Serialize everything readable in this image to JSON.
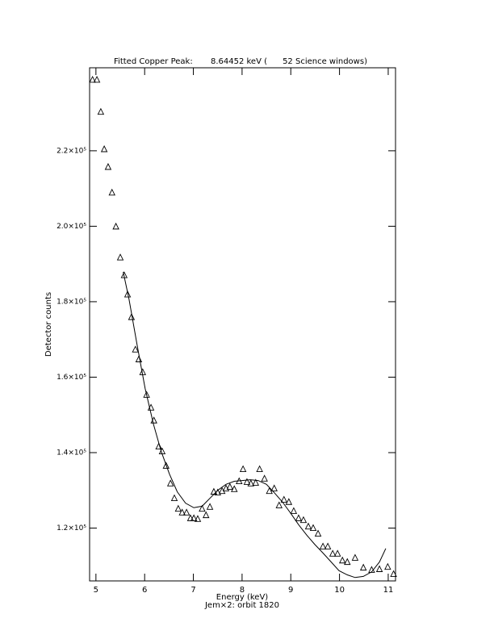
{
  "chart_data": {
    "type": "scatter",
    "title": "Fitted Copper Peak:       8.64452 keV (      52 Science windows)",
    "x_label": "Energy (keV)",
    "subtitle": "Jem×2: orbit 1820",
    "y_label": "Detector counts",
    "xlim": [
      4.87,
      11.15
    ],
    "ylim": [
      106000,
      242000
    ],
    "xticks": [
      5,
      6,
      7,
      8,
      9,
      10,
      11
    ],
    "yticks": [
      {
        "value": 120000,
        "label": "1.2×10⁵"
      },
      {
        "value": 140000,
        "label": "1.4×10⁵"
      },
      {
        "value": 160000,
        "label": "1.6×10⁵"
      },
      {
        "value": 180000,
        "label": "1.8×10⁵"
      },
      {
        "value": 200000,
        "label": "2.0×10⁵"
      },
      {
        "value": 220000,
        "label": "2.2×10⁵"
      }
    ],
    "color": "#000000",
    "points": {
      "x": [
        4.93,
        5.02,
        5.1,
        5.17,
        5.25,
        5.33,
        5.41,
        5.5,
        5.58,
        5.65,
        5.73,
        5.81,
        5.88,
        5.96,
        6.04,
        6.13,
        6.19,
        6.29,
        6.36,
        6.44,
        6.53,
        6.61,
        6.69,
        6.77,
        6.86,
        6.94,
        7.01,
        7.09,
        7.18,
        7.26,
        7.34,
        7.42,
        7.5,
        7.59,
        7.67,
        7.75,
        7.84,
        7.94,
        8.02,
        8.1,
        8.18,
        8.28,
        8.36,
        8.46,
        8.56,
        8.66,
        8.76,
        8.86,
        8.96,
        9.06,
        9.16,
        9.26,
        9.36,
        9.46,
        9.56,
        9.66,
        9.76,
        9.86,
        9.96,
        10.06,
        10.16,
        10.32,
        10.49,
        10.66,
        10.82,
        10.99,
        11.11
      ],
      "values": [
        238800,
        238800,
        230300,
        220400,
        215700,
        208900,
        199900,
        191700,
        187000,
        181900,
        175900,
        167300,
        164700,
        161300,
        155300,
        151900,
        148500,
        141600,
        140300,
        136500,
        131800,
        127900,
        125100,
        124100,
        124100,
        122600,
        122600,
        122400,
        125100,
        123400,
        125600,
        129600,
        129400,
        129800,
        130500,
        130900,
        130300,
        132400,
        135600,
        132200,
        131800,
        132000,
        135600,
        133100,
        129800,
        130500,
        126000,
        127500,
        126900,
        124500,
        122600,
        122100,
        120400,
        120000,
        118500,
        115100,
        115100,
        113200,
        113200,
        111400,
        111000,
        112100,
        109500,
        108900,
        109100,
        109700,
        107800
      ]
    },
    "fit": {
      "x": [
        5.56,
        5.68,
        5.85,
        6.01,
        6.18,
        6.34,
        6.51,
        6.67,
        6.84,
        7.01,
        7.18,
        7.34,
        7.51,
        7.67,
        7.84,
        8.0,
        8.17,
        8.33,
        8.5,
        8.66,
        8.83,
        9.0,
        9.16,
        9.33,
        9.49,
        9.66,
        9.83,
        9.99,
        10.16,
        10.32,
        10.49,
        10.66,
        10.82,
        10.95
      ],
      "values": [
        187900,
        180600,
        168200,
        157000,
        147600,
        140300,
        134300,
        129600,
        126600,
        125400,
        125800,
        127900,
        130100,
        131600,
        132400,
        132600,
        132800,
        132600,
        131600,
        129400,
        126900,
        123900,
        120900,
        118100,
        115700,
        113400,
        111000,
        108700,
        107600,
        106900,
        107200,
        108400,
        111000,
        114600
      ]
    }
  }
}
